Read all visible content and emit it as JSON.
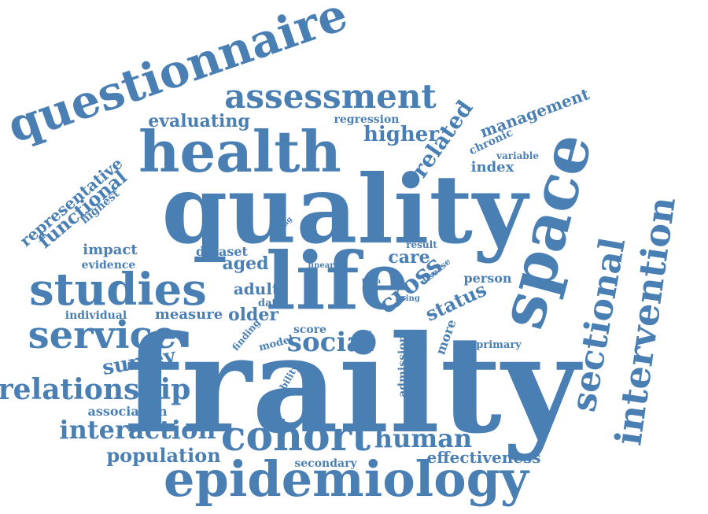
{
  "word_cloud": {
    "color": "#4a7fb4",
    "words": [
      {
        "id": "frailty",
        "text": "frailty"
      },
      {
        "id": "quality",
        "text": "quality"
      },
      {
        "id": "life",
        "text": "life"
      },
      {
        "id": "health",
        "text": "health"
      },
      {
        "id": "space",
        "text": "space"
      },
      {
        "id": "questionnaire",
        "text": "questionnaire"
      },
      {
        "id": "epidemiology",
        "text": "epidemiology"
      },
      {
        "id": "studies",
        "text": "studies"
      },
      {
        "id": "intervention",
        "text": "intervention"
      },
      {
        "id": "sectional",
        "text": "sectional"
      },
      {
        "id": "cohort",
        "text": "cohort"
      },
      {
        "id": "assessment",
        "text": "assessment"
      },
      {
        "id": "service",
        "text": "service"
      },
      {
        "id": "relationship",
        "text": "relationship"
      },
      {
        "id": "interaction",
        "text": "interaction"
      },
      {
        "id": "social",
        "text": "social"
      },
      {
        "id": "human",
        "text": "human"
      },
      {
        "id": "population",
        "text": "population"
      },
      {
        "id": "survey",
        "text": "survey"
      },
      {
        "id": "cross",
        "text": "cross"
      },
      {
        "id": "related",
        "text": "related"
      },
      {
        "id": "higher",
        "text": "higher"
      },
      {
        "id": "evaluating",
        "text": "evaluating"
      },
      {
        "id": "management",
        "text": "management"
      },
      {
        "id": "representative",
        "text": "representative"
      },
      {
        "id": "functional",
        "text": "functional"
      },
      {
        "id": "aged",
        "text": "aged"
      },
      {
        "id": "older",
        "text": "older"
      },
      {
        "id": "measure",
        "text": "measure"
      },
      {
        "id": "status",
        "text": "status"
      },
      {
        "id": "care",
        "text": "care"
      },
      {
        "id": "effectiveness",
        "text": "effectiveness"
      },
      {
        "id": "impact",
        "text": "impact"
      },
      {
        "id": "adult",
        "text": "adult"
      },
      {
        "id": "dataset",
        "text": "dataset"
      },
      {
        "id": "index",
        "text": "index"
      },
      {
        "id": "person",
        "text": "person"
      },
      {
        "id": "individual",
        "text": "individual"
      },
      {
        "id": "regression",
        "text": "regression"
      },
      {
        "id": "chronic",
        "text": "chronic"
      },
      {
        "id": "variable",
        "text": "variable"
      },
      {
        "id": "highest",
        "text": "highest"
      },
      {
        "id": "evidence",
        "text": "evidence"
      },
      {
        "id": "association",
        "text": "association"
      },
      {
        "id": "secondary",
        "text": "secondary"
      },
      {
        "id": "more",
        "text": "more"
      },
      {
        "id": "admission",
        "text": "admission"
      },
      {
        "id": "primary",
        "text": "primary"
      },
      {
        "id": "score",
        "text": "score"
      },
      {
        "id": "model",
        "text": "model"
      },
      {
        "id": "data",
        "text": "data"
      },
      {
        "id": "finding",
        "text": "finding"
      },
      {
        "id": "mobility",
        "text": "mobility"
      },
      {
        "id": "result",
        "text": "result"
      },
      {
        "id": "disease",
        "text": "disease"
      },
      {
        "id": "living",
        "text": "living"
      },
      {
        "id": "term",
        "text": "term"
      },
      {
        "id": "linear",
        "text": "linear"
      },
      {
        "id": "setting",
        "text": "setting"
      }
    ]
  }
}
